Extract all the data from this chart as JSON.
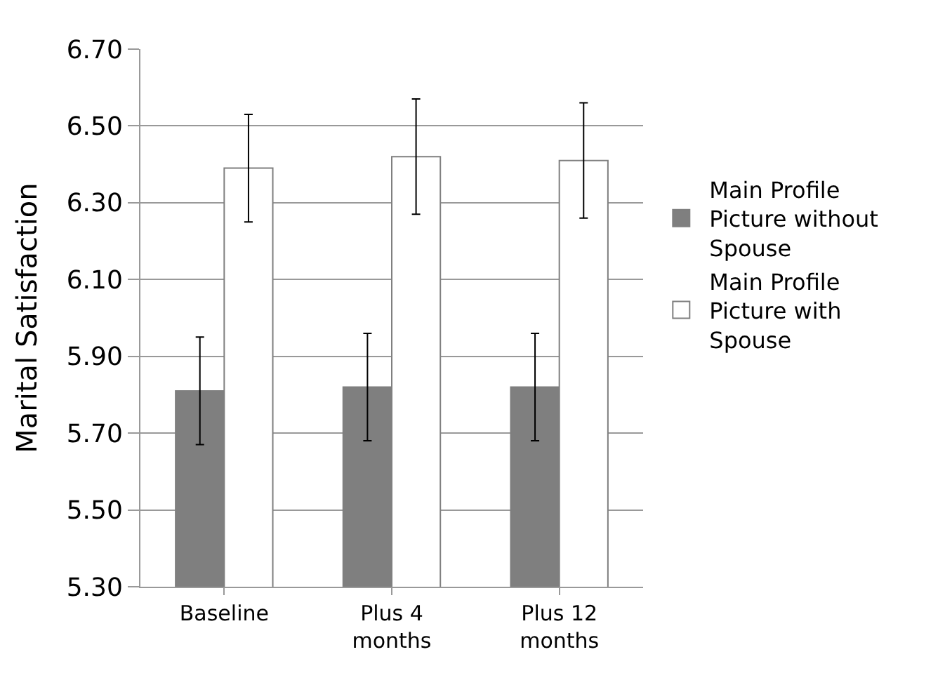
{
  "chart_data": {
    "type": "bar",
    "ylabel": "Marital Satisfaction",
    "categories": [
      "Baseline",
      "Plus 4 months",
      "Plus 12 months"
    ],
    "series": [
      {
        "name": "Main Profile Picture without Spouse",
        "color": "#7f7f7f",
        "values": [
          5.81,
          5.82,
          5.82
        ],
        "errors": [
          0.14,
          0.14,
          0.14
        ]
      },
      {
        "name": "Main Profile Picture with Spouse",
        "color": "#ffffff",
        "values": [
          6.39,
          6.42,
          6.41
        ],
        "errors": [
          0.14,
          0.15,
          0.15
        ]
      }
    ],
    "ylim": [
      5.3,
      6.7
    ],
    "yticks": [
      {
        "value": 5.3,
        "label": "5.30"
      },
      {
        "value": 5.5,
        "label": "5.50"
      },
      {
        "value": 5.7,
        "label": "5.70"
      },
      {
        "value": 5.9,
        "label": "5.90"
      },
      {
        "value": 6.1,
        "label": "6.10"
      },
      {
        "value": 6.3,
        "label": "6.30"
      },
      {
        "value": 6.5,
        "label": "6.50"
      },
      {
        "value": 6.7,
        "label": "6.70"
      }
    ],
    "grid": "y",
    "legend": "right"
  }
}
